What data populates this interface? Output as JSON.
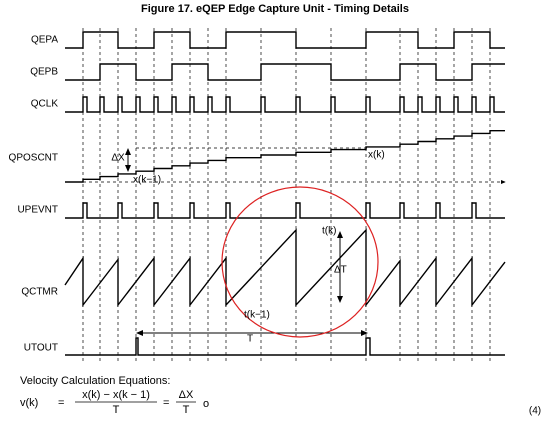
{
  "title": "Figure 17.  eQEP Edge Capture Unit - Timing Details",
  "signals": [
    "QEPA",
    "QEPB",
    "QCLK",
    "QPOSCNT",
    "UPEVNT",
    "QCTMR",
    "UTOUT"
  ],
  "annotations": {
    "delta_x": "ΔX",
    "x_k": "x(k)",
    "x_k_1": "x(k−1)",
    "t_k": "t(k)",
    "delta_t": "ΔT",
    "t_k_1": "t(k−1)",
    "period": "T"
  },
  "equation": {
    "heading": "Velocity Calculation Equations:",
    "lhs": "v(k)",
    "eq1": "=",
    "num1": "x(k) − x(k − 1)",
    "den1": "T",
    "eq2": "=",
    "num2": "ΔX",
    "den2": "T",
    "suffix": "o",
    "number": "(4)"
  }
}
